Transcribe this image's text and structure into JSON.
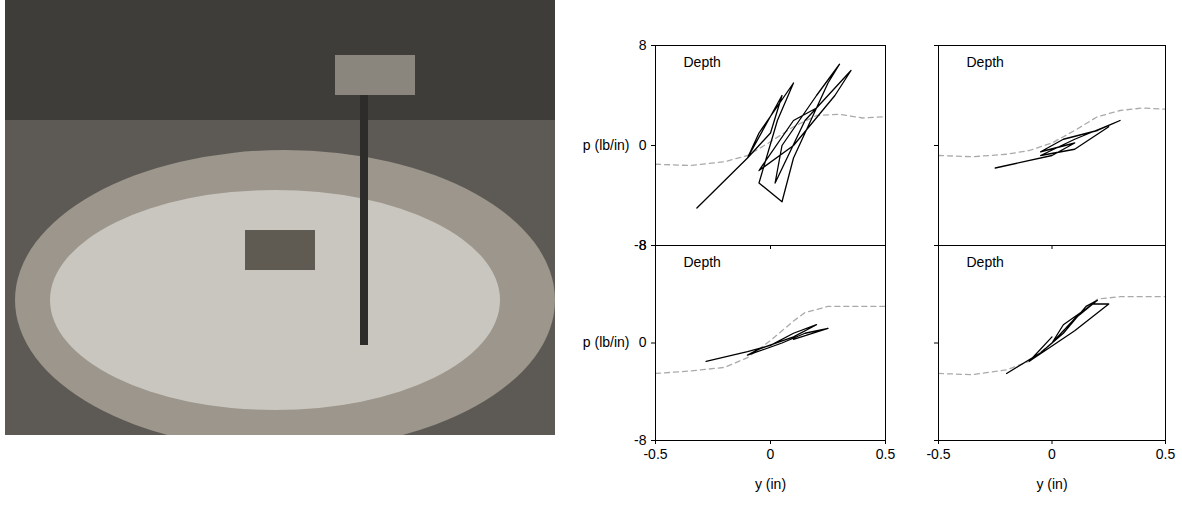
{
  "chart_data": [
    {
      "type": "line",
      "annotation": "Depth",
      "ylabel": "p (lb/in)",
      "xlim": [
        -0.5,
        0.5
      ],
      "ylim": [
        -8,
        8
      ],
      "xticks": [
        -0.5,
        0,
        0.5
      ],
      "yticks": [
        -8,
        0,
        8
      ],
      "tick_labels": "y",
      "series": [
        {
          "color": "#aaaaaa",
          "line_style": "dashed",
          "x": [
            -0.5,
            -0.35,
            -0.2,
            -0.1,
            0,
            0.1,
            0.2,
            0.3,
            0.4,
            0.5
          ],
          "y": [
            -1.5,
            -1.6,
            -1.3,
            -0.8,
            0.3,
            1.5,
            2.4,
            2.5,
            2.2,
            2.3
          ]
        },
        {
          "color": "#000000",
          "line_style": "solid",
          "x": [
            -0.32,
            -0.1,
            0.05,
            0,
            -0.1,
            -0.05,
            0.1,
            0.03,
            -0.05,
            0.05,
            0.1,
            0.25,
            0.3,
            0.2,
            0.05,
            0.02,
            0.15,
            0.35,
            0.28,
            0.1,
            -0.05,
            0.1,
            0.2
          ],
          "y": [
            -5,
            -1,
            4,
            1,
            -1,
            1,
            5,
            2,
            -3,
            -4.5,
            -1,
            5,
            6.5,
            4,
            0,
            -3,
            2,
            6,
            4,
            0,
            -2,
            2,
            3
          ]
        }
      ]
    },
    {
      "type": "line",
      "annotation": "Depth",
      "xlim": [
        -0.5,
        0.5
      ],
      "ylim": [
        -8,
        8
      ],
      "xticks": [
        -0.5,
        0,
        0.5
      ],
      "yticks": [
        -8,
        0,
        8
      ],
      "tick_labels": false,
      "series": [
        {
          "color": "#aaaaaa",
          "line_style": "dashed",
          "x": [
            -0.5,
            -0.35,
            -0.2,
            -0.1,
            0,
            0.1,
            0.2,
            0.3,
            0.4,
            0.5
          ],
          "y": [
            -0.8,
            -0.9,
            -0.7,
            -0.4,
            0.2,
            1.2,
            2.3,
            2.8,
            3.0,
            2.9
          ]
        },
        {
          "color": "#000000",
          "line_style": "solid",
          "x": [
            -0.25,
            0,
            0.1,
            -0.05,
            0.05,
            0.2,
            0.3,
            0.1,
            -0.05,
            0.1,
            0.25
          ],
          "y": [
            -1.8,
            -0.8,
            0.2,
            -0.5,
            0.5,
            1.2,
            2,
            0.5,
            -0.8,
            -0.3,
            1.5
          ]
        }
      ]
    },
    {
      "type": "line",
      "annotation": "Depth",
      "ylabel": "p (lb/in)",
      "xlabel": "y (in)",
      "xlim": [
        -0.5,
        0.5
      ],
      "ylim": [
        -8,
        8
      ],
      "xticks": [
        -0.5,
        0,
        0.5
      ],
      "yticks": [
        -8,
        0,
        8
      ],
      "tick_labels": true,
      "series": [
        {
          "color": "#aaaaaa",
          "line_style": "dashed",
          "x": [
            -0.5,
            -0.35,
            -0.2,
            -0.1,
            0,
            0.1,
            0.15,
            0.25,
            0.35,
            0.5
          ],
          "y": [
            -2.5,
            -2.3,
            -2.0,
            -1.2,
            0.2,
            1.8,
            2.5,
            3.0,
            3.0,
            3.0
          ]
        },
        {
          "color": "#000000",
          "line_style": "solid",
          "x": [
            -0.28,
            -0.1,
            0,
            0.1,
            0.2,
            0.1,
            -0.05,
            -0.1,
            0.05,
            0.15,
            0.25,
            0.1
          ],
          "y": [
            -1.5,
            -0.7,
            -0.2,
            0.8,
            1.5,
            0.5,
            -0.5,
            -1,
            0,
            0.8,
            1.2,
            0.3
          ]
        }
      ]
    },
    {
      "type": "line",
      "annotation": "Depth",
      "xlabel": "y (in)",
      "xlim": [
        -0.5,
        0.5
      ],
      "ylim": [
        -8,
        8
      ],
      "xticks": [
        -0.5,
        0,
        0.5
      ],
      "yticks": [
        -8,
        0,
        8
      ],
      "tick_labels": "x",
      "series": [
        {
          "color": "#aaaaaa",
          "line_style": "dashed",
          "x": [
            -0.5,
            -0.35,
            -0.2,
            -0.1,
            0,
            0.1,
            0.2,
            0.3,
            0.4,
            0.5
          ],
          "y": [
            -2.5,
            -2.6,
            -2.2,
            -1.5,
            0,
            2,
            3.6,
            3.8,
            3.8,
            3.8
          ]
        },
        {
          "color": "#000000",
          "line_style": "solid",
          "x": [
            -0.2,
            -0.05,
            0.05,
            0.15,
            0.2,
            0.1,
            0,
            0.05,
            0.18,
            0.25,
            0.1,
            -0.1,
            0
          ],
          "y": [
            -2.5,
            -0.8,
            0.8,
            3,
            3.5,
            2,
            0,
            1.5,
            3.2,
            3.2,
            1,
            -1.5,
            0.5
          ]
        }
      ]
    }
  ]
}
